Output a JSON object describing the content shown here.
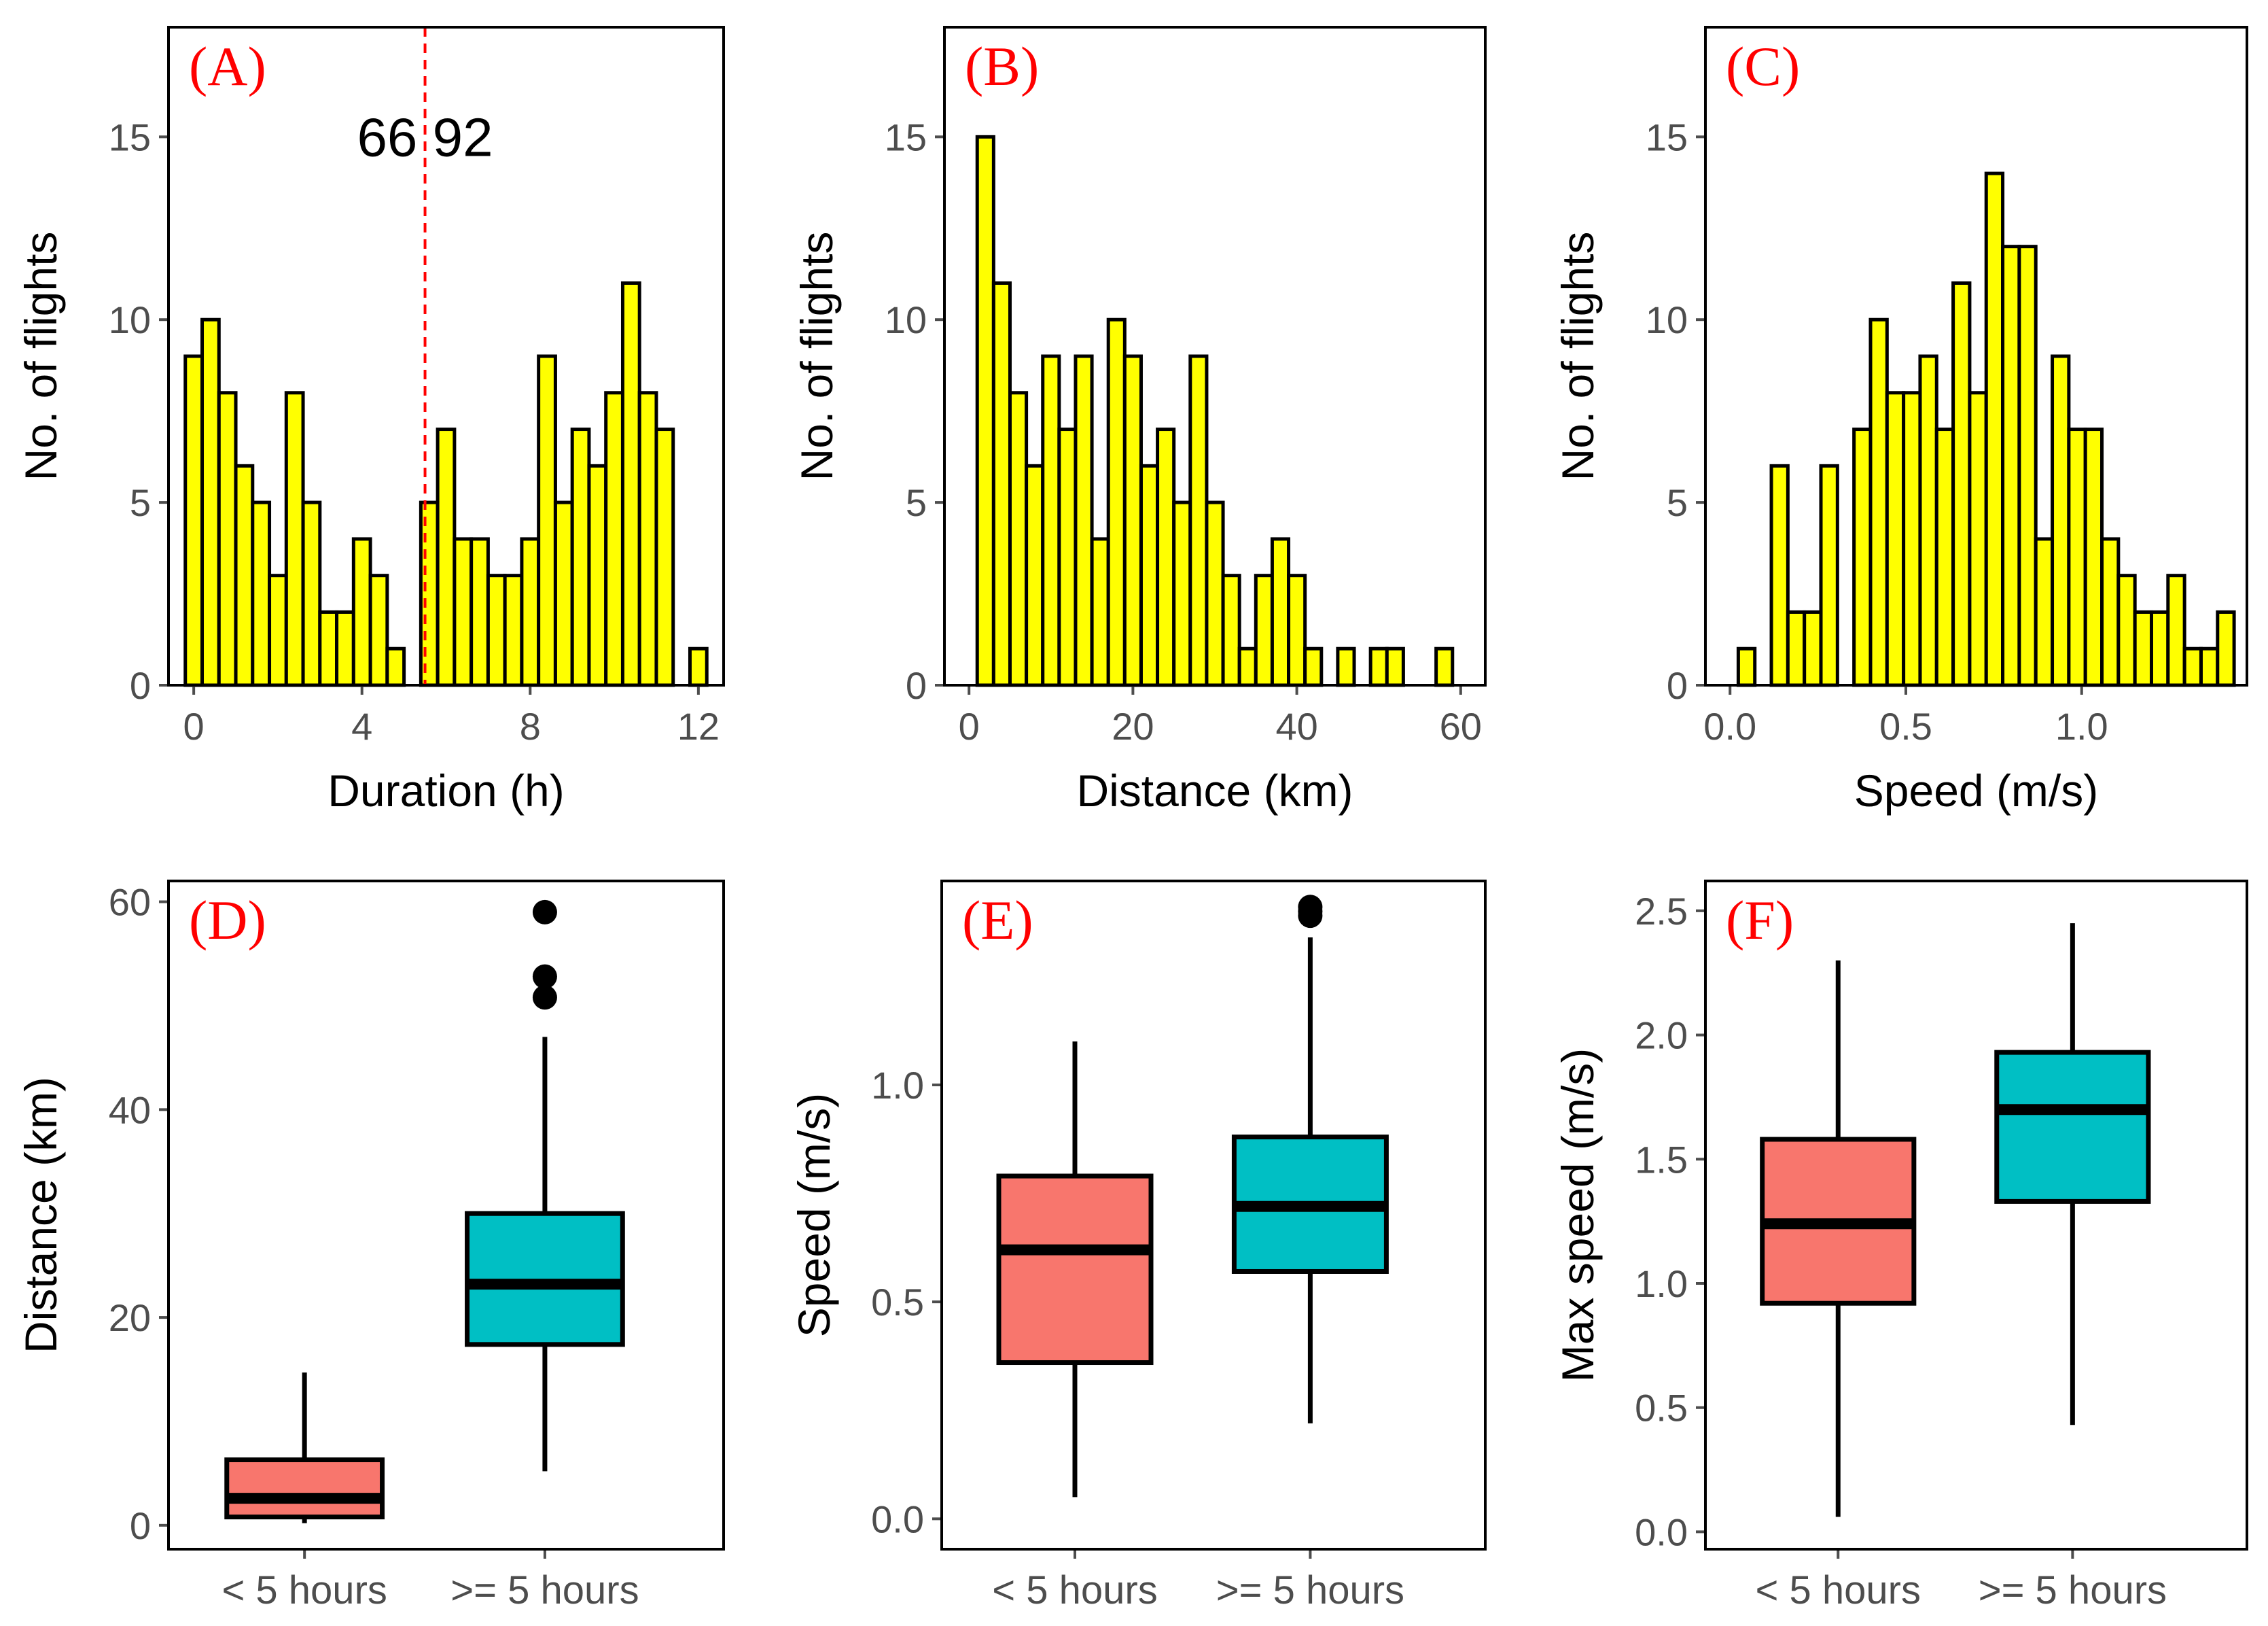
{
  "figure": {
    "background": "#ffffff"
  },
  "colors": {
    "histogram_fill": "#ffff00",
    "outline": "#000000",
    "label": "#ff0000",
    "threshold_line": "#ff0000",
    "box_short": "#f8766d",
    "box_long": "#00bfc4",
    "axis_text": "#4d4d4d",
    "title_text": "#000000"
  },
  "chart_data": [
    {
      "id": "A",
      "type": "bar",
      "subtype": "histogram",
      "panel_label": "(A)",
      "xlabel": "Duration (h)",
      "ylabel": "No. of flights",
      "xlim": [
        -0.6,
        12.6
      ],
      "ylim": [
        0,
        18
      ],
      "bin_width": 0.4,
      "bin_centers": [
        0.0,
        0.4,
        0.8,
        1.2,
        1.6,
        2.0,
        2.4,
        2.8,
        3.2,
        3.6,
        4.0,
        4.4,
        4.8,
        5.2,
        5.6,
        6.0,
        6.4,
        6.8,
        7.2,
        7.6,
        8.0,
        8.4,
        8.8,
        9.2,
        9.6,
        10.0,
        10.4,
        10.8,
        11.2,
        11.6,
        12.0
      ],
      "values": [
        9,
        10,
        8,
        6,
        5,
        3,
        8,
        5,
        2,
        2,
        4,
        3,
        1,
        0,
        5,
        7,
        4,
        4,
        3,
        3,
        4,
        9,
        5,
        7,
        6,
        8,
        11,
        8,
        7,
        0,
        1
      ],
      "x_ticks": [
        0,
        4,
        8,
        12
      ],
      "x_tick_labels": [
        "0",
        "4",
        "8",
        "12"
      ],
      "y_ticks": [
        0,
        5,
        10,
        15
      ],
      "y_tick_labels": [
        "0",
        "5",
        "10",
        "15"
      ],
      "threshold_x": 5.5,
      "annotation": {
        "text": "66 92",
        "x": 5.5,
        "y": 15
      }
    },
    {
      "id": "B",
      "type": "bar",
      "subtype": "histogram",
      "panel_label": "(B)",
      "xlabel": "Distance (km)",
      "ylabel": "No. of flights",
      "xlim": [
        -3,
        63
      ],
      "ylim": [
        0,
        18
      ],
      "bin_width": 2,
      "bin_centers": [
        2,
        4,
        6,
        8,
        10,
        12,
        14,
        16,
        18,
        20,
        22,
        24,
        26,
        28,
        30,
        32,
        34,
        36,
        38,
        40,
        42,
        44,
        46,
        48,
        50,
        52,
        54,
        56,
        58,
        60
      ],
      "values": [
        15,
        11,
        8,
        6,
        9,
        7,
        9,
        4,
        10,
        9,
        6,
        7,
        5,
        9,
        5,
        3,
        1,
        3,
        4,
        3,
        1,
        0,
        1,
        0,
        1,
        1,
        0,
        0,
        1,
        0
      ],
      "x_ticks": [
        0,
        20,
        40,
        60
      ],
      "x_tick_labels": [
        "0",
        "20",
        "40",
        "60"
      ],
      "y_ticks": [
        0,
        5,
        10,
        15
      ],
      "y_tick_labels": [
        "0",
        "5",
        "10",
        "15"
      ]
    },
    {
      "id": "C",
      "type": "bar",
      "subtype": "histogram",
      "panel_label": "(C)",
      "xlabel": "Speed (m/s)",
      "ylabel": "No. of flights",
      "xlim": [
        -0.07,
        1.47
      ],
      "ylim": [
        0,
        18
      ],
      "bin_width": 0.047,
      "bin_centers": [
        0.047,
        0.094,
        0.141,
        0.188,
        0.235,
        0.282,
        0.329,
        0.376,
        0.423,
        0.47,
        0.517,
        0.564,
        0.611,
        0.658,
        0.705,
        0.752,
        0.799,
        0.846,
        0.893,
        0.94,
        0.987,
        1.034,
        1.081,
        1.128,
        1.175,
        1.222,
        1.269,
        1.316,
        1.363,
        1.41
      ],
      "values": [
        1,
        0,
        6,
        2,
        2,
        6,
        0,
        7,
        10,
        8,
        8,
        9,
        7,
        11,
        8,
        14,
        12,
        12,
        4,
        9,
        7,
        7,
        4,
        3,
        2,
        2,
        3,
        1,
        1,
        2
      ],
      "x_ticks": [
        0.0,
        0.5,
        1.0
      ],
      "x_tick_labels": [
        "0.0",
        "0.5",
        "1.0"
      ],
      "y_ticks": [
        0,
        5,
        10,
        15
      ],
      "y_tick_labels": [
        "0",
        "5",
        "10",
        "15"
      ]
    },
    {
      "id": "D",
      "type": "boxplot",
      "panel_label": "(D)",
      "xlabel": "",
      "ylabel": "Distance (km)",
      "ylim": [
        -2.3,
        62
      ],
      "categories": [
        "< 5 hours",
        ">= 5 hours"
      ],
      "boxes": [
        {
          "category": "< 5 hours",
          "whisker_low": 0.2,
          "q1": 0.8,
          "median": 2.6,
          "q3": 6.3,
          "whisker_high": 14.7,
          "outliers": []
        },
        {
          "category": ">= 5 hours",
          "whisker_low": 5.2,
          "q1": 17.4,
          "median": 23.2,
          "q3": 30.0,
          "whisker_high": 47.0,
          "outliers": [
            50.8,
            52.8,
            59.0
          ]
        }
      ],
      "y_ticks": [
        0,
        20,
        40,
        60
      ],
      "y_tick_labels": [
        "0",
        "20",
        "40",
        "60"
      ]
    },
    {
      "id": "E",
      "type": "boxplot",
      "panel_label": "(E)",
      "xlabel": "",
      "ylabel": "Speed (m/s)",
      "ylim": [
        -0.07,
        1.47
      ],
      "categories": [
        "< 5 hours",
        ">= 5 hours"
      ],
      "boxes": [
        {
          "category": "< 5 hours",
          "whisker_low": 0.05,
          "q1": 0.36,
          "median": 0.62,
          "q3": 0.79,
          "whisker_high": 1.1,
          "outliers": []
        },
        {
          "category": ">= 5 hours",
          "whisker_low": 0.22,
          "q1": 0.57,
          "median": 0.72,
          "q3": 0.88,
          "whisker_high": 1.34,
          "outliers": [
            1.39,
            1.4,
            1.41
          ]
        }
      ],
      "y_ticks": [
        0.0,
        0.5,
        1.0
      ],
      "y_tick_labels": [
        "0.0",
        "0.5",
        "1.0"
      ]
    },
    {
      "id": "F",
      "type": "boxplot",
      "panel_label": "(F)",
      "xlabel": "",
      "ylabel": "Max speed (m/s)",
      "ylim": [
        -0.07,
        2.62
      ],
      "categories": [
        "< 5 hours",
        ">= 5 hours"
      ],
      "boxes": [
        {
          "category": "< 5 hours",
          "whisker_low": 0.06,
          "q1": 0.92,
          "median": 1.24,
          "q3": 1.58,
          "whisker_high": 2.3,
          "outliers": []
        },
        {
          "category": ">= 5 hours",
          "whisker_low": 0.43,
          "q1": 1.33,
          "median": 1.7,
          "q3": 1.93,
          "whisker_high": 2.45,
          "outliers": []
        }
      ],
      "y_ticks": [
        0.0,
        0.5,
        1.0,
        1.5,
        2.0,
        2.5
      ],
      "y_tick_labels": [
        "0.0",
        "0.5",
        "1.0",
        "1.5",
        "2.0",
        "2.5"
      ]
    }
  ]
}
